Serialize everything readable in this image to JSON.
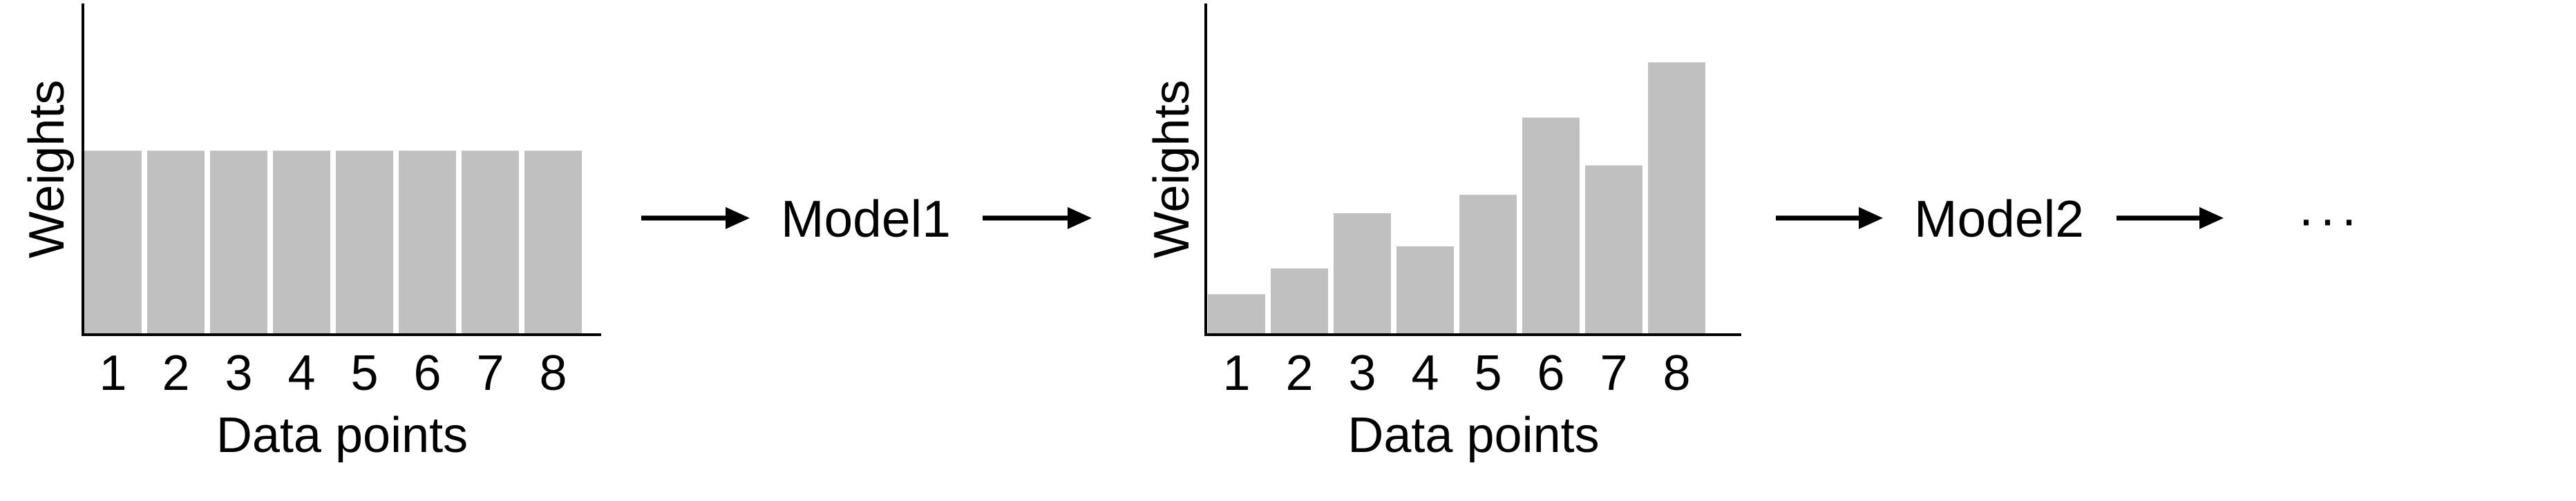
{
  "colors": {
    "bar": "#c0c0c0",
    "axis": "#000000",
    "text": "#000000"
  },
  "chart_data": [
    {
      "type": "bar",
      "categories": [
        "1",
        "2",
        "3",
        "4",
        "5",
        "6",
        "7",
        "8"
      ],
      "values": [
        5,
        5,
        5,
        5,
        5,
        5,
        5,
        5
      ],
      "ylim": [
        0,
        9
      ],
      "xlabel": "Data points",
      "ylabel": "Weights",
      "grid": false
    },
    {
      "type": "bar",
      "categories": [
        "1",
        "2",
        "3",
        "4",
        "5",
        "6",
        "7",
        "8"
      ],
      "values": [
        1.1,
        1.8,
        3.3,
        2.4,
        3.8,
        5.9,
        4.6,
        7.4
      ],
      "ylim": [
        0,
        9
      ],
      "xlabel": "Data points",
      "ylabel": "Weights",
      "grid": false
    }
  ],
  "flow": {
    "model1_label": "Model1",
    "model2_label": "Model2",
    "ellipsis": "···"
  }
}
